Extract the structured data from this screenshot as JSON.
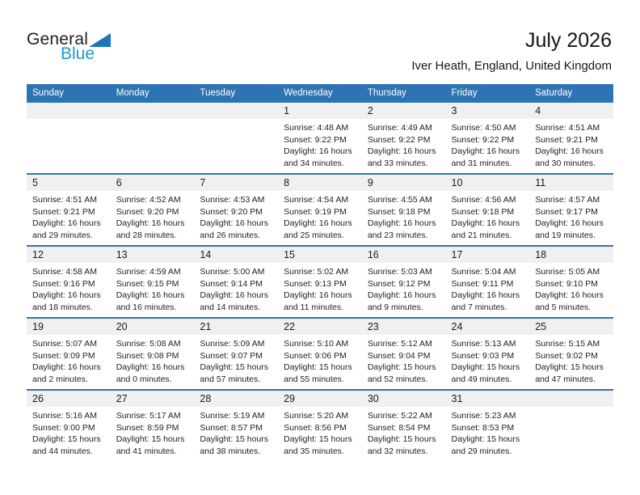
{
  "logo": {
    "general": "General",
    "blue": "Blue"
  },
  "header": {
    "title": "July 2026",
    "subtitle": "Iver Heath, England, United Kingdom"
  },
  "colors": {
    "header_blue": "#2E74B5",
    "divider_blue": "#2E74B5",
    "strip_gray": "#F0F0F0",
    "logo_triangle_blue": "#1B75BB",
    "logo_blue_text": "#2097D4"
  },
  "weekdays": [
    "Sunday",
    "Monday",
    "Tuesday",
    "Wednesday",
    "Thursday",
    "Friday",
    "Saturday"
  ],
  "weeks": [
    [
      null,
      null,
      null,
      {
        "day": "1",
        "sunrise": "Sunrise: 4:48 AM",
        "sunset": "Sunset: 9:22 PM",
        "daylight1": "Daylight: 16 hours",
        "daylight2": "and 34 minutes."
      },
      {
        "day": "2",
        "sunrise": "Sunrise: 4:49 AM",
        "sunset": "Sunset: 9:22 PM",
        "daylight1": "Daylight: 16 hours",
        "daylight2": "and 33 minutes."
      },
      {
        "day": "3",
        "sunrise": "Sunrise: 4:50 AM",
        "sunset": "Sunset: 9:22 PM",
        "daylight1": "Daylight: 16 hours",
        "daylight2": "and 31 minutes."
      },
      {
        "day": "4",
        "sunrise": "Sunrise: 4:51 AM",
        "sunset": "Sunset: 9:21 PM",
        "daylight1": "Daylight: 16 hours",
        "daylight2": "and 30 minutes."
      }
    ],
    [
      {
        "day": "5",
        "sunrise": "Sunrise: 4:51 AM",
        "sunset": "Sunset: 9:21 PM",
        "daylight1": "Daylight: 16 hours",
        "daylight2": "and 29 minutes."
      },
      {
        "day": "6",
        "sunrise": "Sunrise: 4:52 AM",
        "sunset": "Sunset: 9:20 PM",
        "daylight1": "Daylight: 16 hours",
        "daylight2": "and 28 minutes."
      },
      {
        "day": "7",
        "sunrise": "Sunrise: 4:53 AM",
        "sunset": "Sunset: 9:20 PM",
        "daylight1": "Daylight: 16 hours",
        "daylight2": "and 26 minutes."
      },
      {
        "day": "8",
        "sunrise": "Sunrise: 4:54 AM",
        "sunset": "Sunset: 9:19 PM",
        "daylight1": "Daylight: 16 hours",
        "daylight2": "and 25 minutes."
      },
      {
        "day": "9",
        "sunrise": "Sunrise: 4:55 AM",
        "sunset": "Sunset: 9:18 PM",
        "daylight1": "Daylight: 16 hours",
        "daylight2": "and 23 minutes."
      },
      {
        "day": "10",
        "sunrise": "Sunrise: 4:56 AM",
        "sunset": "Sunset: 9:18 PM",
        "daylight1": "Daylight: 16 hours",
        "daylight2": "and 21 minutes."
      },
      {
        "day": "11",
        "sunrise": "Sunrise: 4:57 AM",
        "sunset": "Sunset: 9:17 PM",
        "daylight1": "Daylight: 16 hours",
        "daylight2": "and 19 minutes."
      }
    ],
    [
      {
        "day": "12",
        "sunrise": "Sunrise: 4:58 AM",
        "sunset": "Sunset: 9:16 PM",
        "daylight1": "Daylight: 16 hours",
        "daylight2": "and 18 minutes."
      },
      {
        "day": "13",
        "sunrise": "Sunrise: 4:59 AM",
        "sunset": "Sunset: 9:15 PM",
        "daylight1": "Daylight: 16 hours",
        "daylight2": "and 16 minutes."
      },
      {
        "day": "14",
        "sunrise": "Sunrise: 5:00 AM",
        "sunset": "Sunset: 9:14 PM",
        "daylight1": "Daylight: 16 hours",
        "daylight2": "and 14 minutes."
      },
      {
        "day": "15",
        "sunrise": "Sunrise: 5:02 AM",
        "sunset": "Sunset: 9:13 PM",
        "daylight1": "Daylight: 16 hours",
        "daylight2": "and 11 minutes."
      },
      {
        "day": "16",
        "sunrise": "Sunrise: 5:03 AM",
        "sunset": "Sunset: 9:12 PM",
        "daylight1": "Daylight: 16 hours",
        "daylight2": "and 9 minutes."
      },
      {
        "day": "17",
        "sunrise": "Sunrise: 5:04 AM",
        "sunset": "Sunset: 9:11 PM",
        "daylight1": "Daylight: 16 hours",
        "daylight2": "and 7 minutes."
      },
      {
        "day": "18",
        "sunrise": "Sunrise: 5:05 AM",
        "sunset": "Sunset: 9:10 PM",
        "daylight1": "Daylight: 16 hours",
        "daylight2": "and 5 minutes."
      }
    ],
    [
      {
        "day": "19",
        "sunrise": "Sunrise: 5:07 AM",
        "sunset": "Sunset: 9:09 PM",
        "daylight1": "Daylight: 16 hours",
        "daylight2": "and 2 minutes."
      },
      {
        "day": "20",
        "sunrise": "Sunrise: 5:08 AM",
        "sunset": "Sunset: 9:08 PM",
        "daylight1": "Daylight: 16 hours",
        "daylight2": "and 0 minutes."
      },
      {
        "day": "21",
        "sunrise": "Sunrise: 5:09 AM",
        "sunset": "Sunset: 9:07 PM",
        "daylight1": "Daylight: 15 hours",
        "daylight2": "and 57 minutes."
      },
      {
        "day": "22",
        "sunrise": "Sunrise: 5:10 AM",
        "sunset": "Sunset: 9:06 PM",
        "daylight1": "Daylight: 15 hours",
        "daylight2": "and 55 minutes."
      },
      {
        "day": "23",
        "sunrise": "Sunrise: 5:12 AM",
        "sunset": "Sunset: 9:04 PM",
        "daylight1": "Daylight: 15 hours",
        "daylight2": "and 52 minutes."
      },
      {
        "day": "24",
        "sunrise": "Sunrise: 5:13 AM",
        "sunset": "Sunset: 9:03 PM",
        "daylight1": "Daylight: 15 hours",
        "daylight2": "and 49 minutes."
      },
      {
        "day": "25",
        "sunrise": "Sunrise: 5:15 AM",
        "sunset": "Sunset: 9:02 PM",
        "daylight1": "Daylight: 15 hours",
        "daylight2": "and 47 minutes."
      }
    ],
    [
      {
        "day": "26",
        "sunrise": "Sunrise: 5:16 AM",
        "sunset": "Sunset: 9:00 PM",
        "daylight1": "Daylight: 15 hours",
        "daylight2": "and 44 minutes."
      },
      {
        "day": "27",
        "sunrise": "Sunrise: 5:17 AM",
        "sunset": "Sunset: 8:59 PM",
        "daylight1": "Daylight: 15 hours",
        "daylight2": "and 41 minutes."
      },
      {
        "day": "28",
        "sunrise": "Sunrise: 5:19 AM",
        "sunset": "Sunset: 8:57 PM",
        "daylight1": "Daylight: 15 hours",
        "daylight2": "and 38 minutes."
      },
      {
        "day": "29",
        "sunrise": "Sunrise: 5:20 AM",
        "sunset": "Sunset: 8:56 PM",
        "daylight1": "Daylight: 15 hours",
        "daylight2": "and 35 minutes."
      },
      {
        "day": "30",
        "sunrise": "Sunrise: 5:22 AM",
        "sunset": "Sunset: 8:54 PM",
        "daylight1": "Daylight: 15 hours",
        "daylight2": "and 32 minutes."
      },
      {
        "day": "31",
        "sunrise": "Sunrise: 5:23 AM",
        "sunset": "Sunset: 8:53 PM",
        "daylight1": "Daylight: 15 hours",
        "daylight2": "and 29 minutes."
      },
      null
    ]
  ]
}
